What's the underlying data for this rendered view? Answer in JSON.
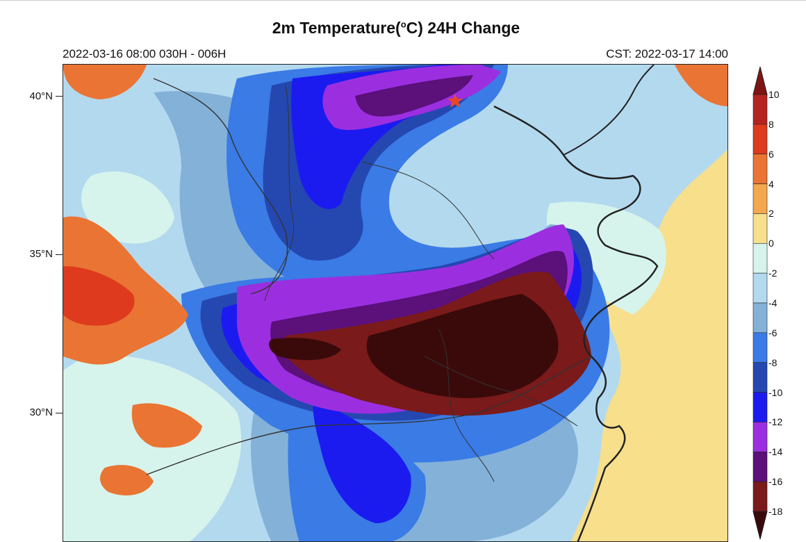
{
  "title": {
    "main": "2m Temperature(",
    "sup": "o",
    "tail": "C) 24H Change"
  },
  "subtitle_left": "2022-03-16 08:00  030H - 006H",
  "subtitle_right": "CST: 2022-03-17 14:00",
  "lat_labels": [
    "40°N",
    "35°N",
    "30°N"
  ],
  "colorbar": {
    "labels": [
      "10",
      "8",
      "6",
      "4",
      "2",
      "0",
      "-2",
      "-4",
      "-6",
      "-8",
      "-10",
      "-12",
      "-14",
      "-16",
      "-18"
    ],
    "colors": [
      "#7f1414",
      "#b52420",
      "#dd3a1e",
      "#ea7433",
      "#f3a74e",
      "#f7df8c",
      "#d6f4ec",
      "#b3d9ef",
      "#83b1d8",
      "#3a7be6",
      "#2548b0",
      "#1b1bf0",
      "#9b2fe0",
      "#5b107a",
      "#7a1a1a",
      "#3a0a0a"
    ]
  },
  "map": {
    "marker": "star-marker",
    "ocean_color": "#f7df8c",
    "zone_colors": {
      "warm_west": "#ea7433",
      "hot_west": "#dd3a1e",
      "light_blue": "#b3d9ef",
      "mint": "#d6f4ec",
      "steel": "#83b1d8",
      "blue": "#3a7be6",
      "dark_blue": "#2548b0",
      "pure_blue": "#1b1bf0",
      "purple": "#9b2fe0",
      "deep_purple": "#5b107a",
      "maroon": "#7a1a1a",
      "dark_maroon": "#3a0a0a",
      "star": "#e8482a",
      "coast": "#222222",
      "border": "#333333"
    }
  }
}
